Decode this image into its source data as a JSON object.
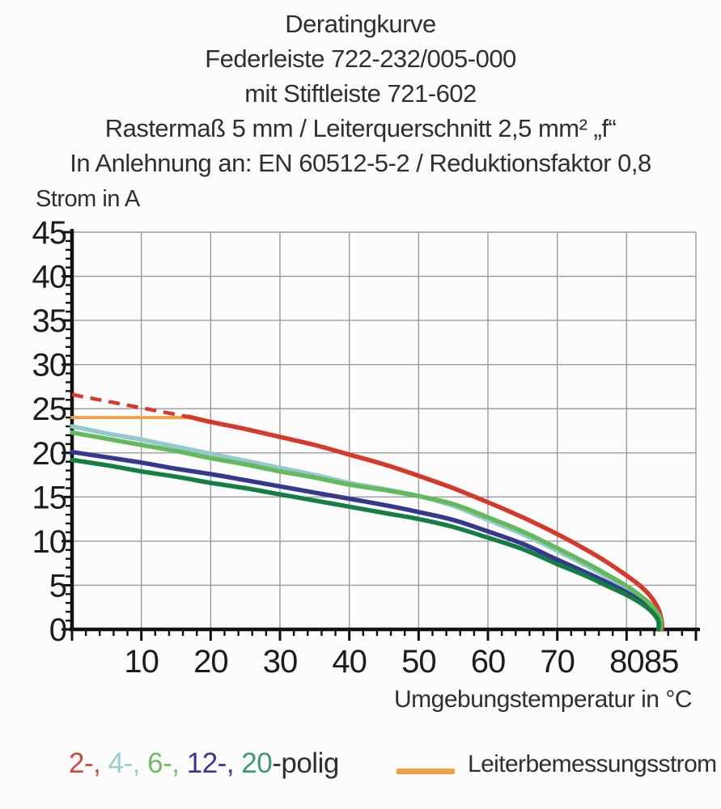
{
  "title": {
    "lines": [
      "Deratingkurve",
      "Federleiste 722-232/005-000",
      "mit Stiftleiste 721-602",
      "Rastermaß 5 mm / Leiterquerschnitt 2,5 mm² „f“",
      "In Anlehnung an: EN 60512-5-2 / Reduktionsfaktor 0,8"
    ]
  },
  "chart_data": {
    "type": "line",
    "title": "Deratingkurve Federleiste 722-232/005-000 mit Stiftleiste 721-602",
    "ylabel": "Strom in A",
    "xlabel": "Umgebungstemperatur in °C",
    "xlim": [
      0,
      90
    ],
    "ylim": [
      0,
      45
    ],
    "x_tick_labels": [
      10,
      20,
      30,
      40,
      50,
      60,
      70,
      80,
      85
    ],
    "y_tick_labels": [
      0,
      5,
      10,
      15,
      20,
      25,
      30,
      35,
      40,
      45
    ],
    "x_grid_step": 10,
    "y_grid_step": 5,
    "x_minor_tick_step": 2,
    "y_minor_tick_step": 1,
    "grid": true,
    "legend_position": "bottom",
    "series": [
      {
        "name": "Leiterbemessungsstrom",
        "color": "#efa243",
        "style": "solid",
        "width": 4,
        "points": [
          [
            0,
            24
          ],
          [
            17.3,
            24
          ]
        ]
      },
      {
        "name": "2-polig extrapolation (dashed)",
        "color": "#d5392b",
        "style": "dashed",
        "width": 4.5,
        "points": [
          [
            0,
            26.6
          ],
          [
            4,
            26.0
          ],
          [
            8,
            25.4
          ],
          [
            12,
            24.8
          ],
          [
            16,
            24.2
          ],
          [
            17.3,
            24.0
          ]
        ]
      },
      {
        "name": "2-polig",
        "color": "#d5392b",
        "style": "solid",
        "width": 5.5,
        "points": [
          [
            16.8,
            24.1
          ],
          [
            20,
            23.5
          ],
          [
            25,
            22.7
          ],
          [
            30,
            21.8
          ],
          [
            35,
            20.9
          ],
          [
            40,
            19.8
          ],
          [
            45,
            18.7
          ],
          [
            50,
            17.4
          ],
          [
            55,
            16.0
          ],
          [
            60,
            14.4
          ],
          [
            65,
            12.7
          ],
          [
            70,
            10.8
          ],
          [
            74,
            9.1
          ],
          [
            77,
            7.7
          ],
          [
            80,
            6.1
          ],
          [
            82,
            4.9
          ],
          [
            83.5,
            3.7
          ],
          [
            84.6,
            2.3
          ],
          [
            85.05,
            1.0
          ],
          [
            85.1,
            0
          ]
        ]
      },
      {
        "name": "4-polig",
        "color": "#93c9ce",
        "style": "solid",
        "width": 5.5,
        "points": [
          [
            0,
            23.0
          ],
          [
            5,
            22.2
          ],
          [
            10,
            21.5
          ],
          [
            15,
            20.7
          ],
          [
            20,
            19.9
          ],
          [
            25,
            19.1
          ],
          [
            30,
            18.3
          ],
          [
            35,
            17.5
          ],
          [
            40,
            16.6
          ],
          [
            45,
            15.9
          ],
          [
            50,
            15.1
          ],
          [
            55,
            14.0
          ],
          [
            60,
            12.4
          ],
          [
            65,
            10.8
          ],
          [
            70,
            8.9
          ],
          [
            74,
            7.3
          ],
          [
            77,
            6.0
          ],
          [
            80,
            4.6
          ],
          [
            82,
            3.6
          ],
          [
            83.5,
            2.6
          ],
          [
            84.75,
            1.2
          ],
          [
            84.8,
            0
          ]
        ]
      },
      {
        "name": "12-polig",
        "color": "#34388f",
        "style": "solid",
        "width": 5.5,
        "points": [
          [
            0,
            20.1
          ],
          [
            5,
            19.5
          ],
          [
            10,
            18.9
          ],
          [
            15,
            18.2
          ],
          [
            20,
            17.6
          ],
          [
            25,
            16.9
          ],
          [
            30,
            16.2
          ],
          [
            35,
            15.5
          ],
          [
            40,
            14.8
          ],
          [
            45,
            14.1
          ],
          [
            50,
            13.3
          ],
          [
            55,
            12.4
          ],
          [
            60,
            11.1
          ],
          [
            65,
            9.7
          ],
          [
            70,
            7.9
          ],
          [
            74,
            6.5
          ],
          [
            77,
            5.4
          ],
          [
            80,
            4.2
          ],
          [
            82,
            3.2
          ],
          [
            83.5,
            2.3
          ],
          [
            84.65,
            1.1
          ],
          [
            84.7,
            0
          ]
        ]
      },
      {
        "name": "6-polig",
        "color": "#63b95c",
        "style": "solid",
        "width": 5.5,
        "points": [
          [
            0,
            22.3
          ],
          [
            5,
            21.6
          ],
          [
            10,
            20.9
          ],
          [
            15,
            20.2
          ],
          [
            20,
            19.4
          ],
          [
            25,
            18.7
          ],
          [
            30,
            17.9
          ],
          [
            35,
            17.2
          ],
          [
            40,
            16.4
          ],
          [
            45,
            15.8
          ],
          [
            50,
            15.1
          ],
          [
            55,
            14.2
          ],
          [
            60,
            12.7
          ],
          [
            65,
            11.1
          ],
          [
            70,
            9.2
          ],
          [
            74,
            7.6
          ],
          [
            77,
            6.3
          ],
          [
            80,
            4.9
          ],
          [
            82,
            3.8
          ],
          [
            83.5,
            2.8
          ],
          [
            84.85,
            1.3
          ],
          [
            84.9,
            0
          ]
        ]
      },
      {
        "name": "20-polig",
        "color": "#157e44",
        "style": "solid",
        "width": 5.5,
        "points": [
          [
            0,
            19.2
          ],
          [
            5,
            18.6
          ],
          [
            10,
            17.9
          ],
          [
            15,
            17.3
          ],
          [
            20,
            16.6
          ],
          [
            25,
            16.0
          ],
          [
            30,
            15.3
          ],
          [
            35,
            14.6
          ],
          [
            40,
            13.9
          ],
          [
            45,
            13.2
          ],
          [
            50,
            12.5
          ],
          [
            55,
            11.6
          ],
          [
            60,
            10.4
          ],
          [
            65,
            9.1
          ],
          [
            70,
            7.4
          ],
          [
            74,
            6.1
          ],
          [
            77,
            5.0
          ],
          [
            80,
            3.9
          ],
          [
            82,
            3.0
          ],
          [
            83.5,
            2.1
          ],
          [
            84.55,
            1.0
          ],
          [
            84.6,
            0
          ]
        ]
      }
    ]
  },
  "legend": {
    "poles": [
      {
        "text": "2-, ",
        "color": "#d0493f"
      },
      {
        "text": "4-, ",
        "color": "#9acccc"
      },
      {
        "text": "6-, ",
        "color": "#6cbd64"
      },
      {
        "text": "12-, ",
        "color": "#39388e"
      },
      {
        "text": "20",
        "color": "#3d9a70"
      },
      {
        "text": "-polig",
        "color": "#2f2f2f"
      }
    ],
    "rated_current": {
      "label": "Leiterbemessungsstrom",
      "color": "#efa243"
    }
  }
}
